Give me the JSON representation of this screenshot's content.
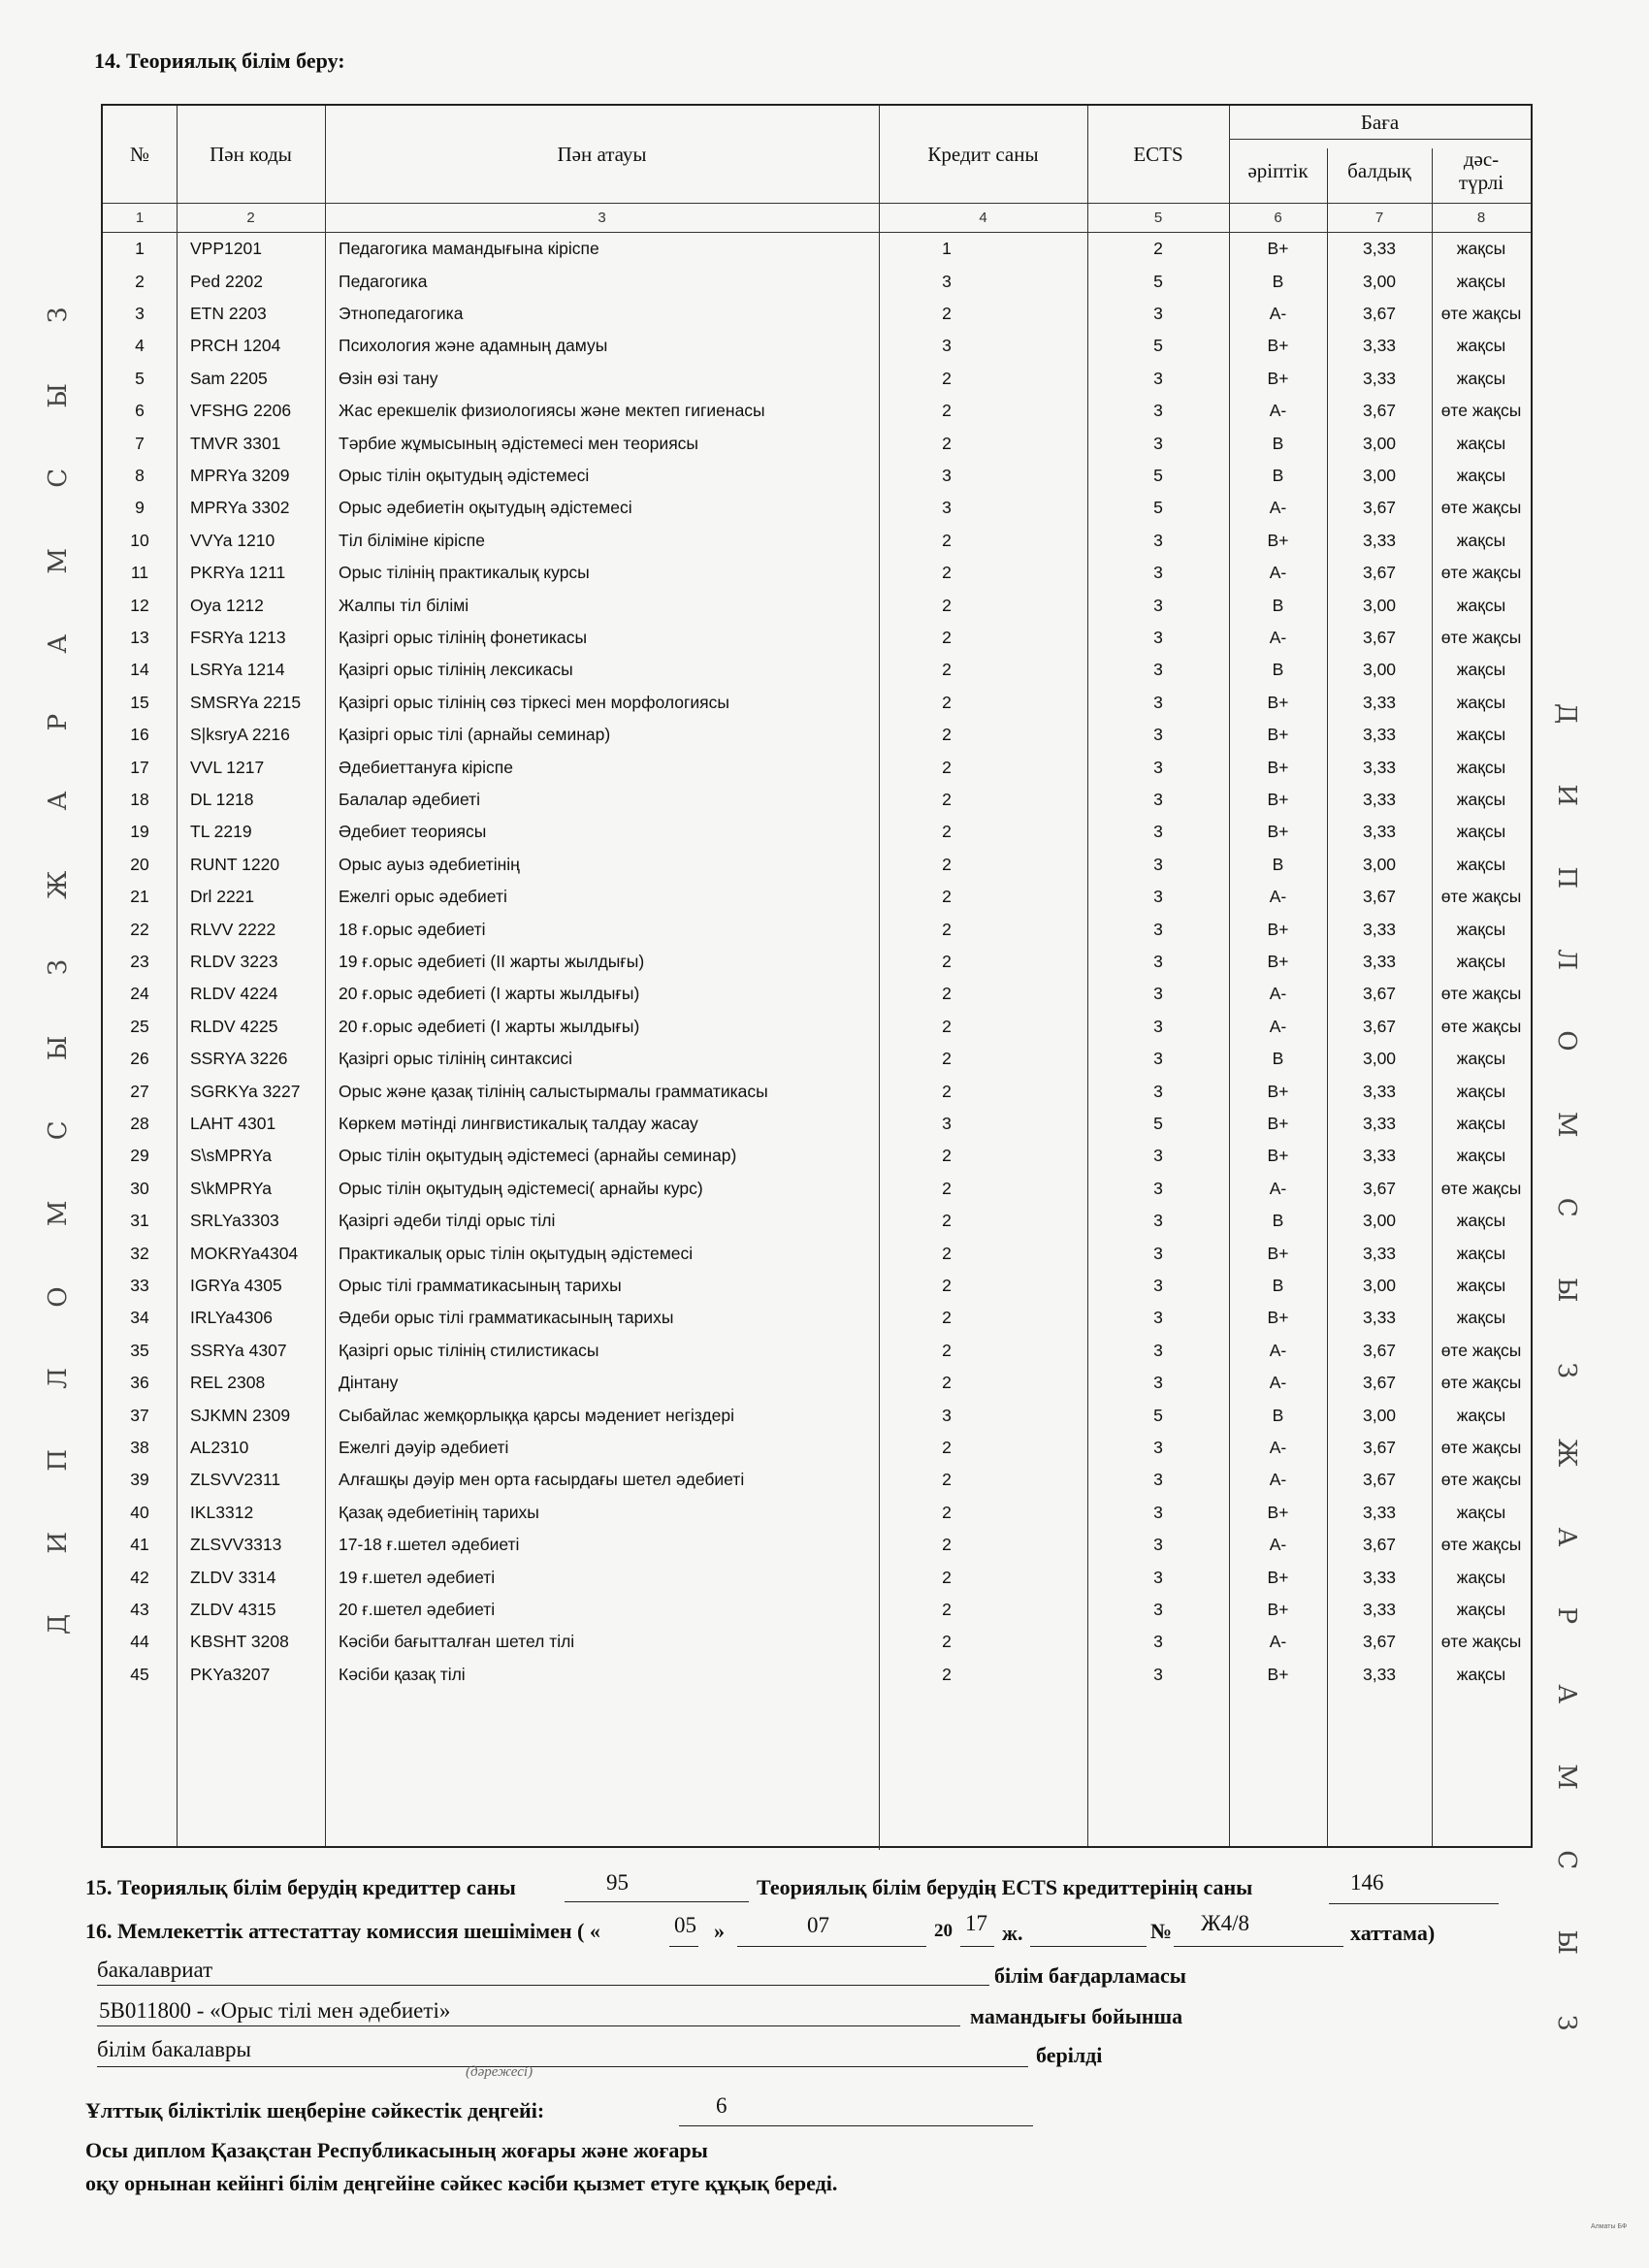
{
  "section14_title": "14. Теориялық білім беру:",
  "watermark": "Д И П Л О М С Ы З   Ж А Р А М С Ы З",
  "table": {
    "headers": {
      "no": "№",
      "code": "Пән коды",
      "name": "Пән атауы",
      "credits": "Кредит саны",
      "ects": "ECTS",
      "grade": "Баға",
      "letter": "әріптік",
      "digital": "балдық",
      "traditional": "дәс-түрлі"
    },
    "column_numbers": [
      "1",
      "2",
      "3",
      "4",
      "5",
      "6",
      "7",
      "8"
    ],
    "rows": [
      [
        "1",
        "VPP1201",
        "Педагогика мамандығына кіріспе",
        "1",
        "2",
        "B+",
        "3,33",
        "жақсы"
      ],
      [
        "2",
        "Ped 2202",
        "Педагогика",
        "3",
        "5",
        "B",
        "3,00",
        "жақсы"
      ],
      [
        "3",
        "ETN 2203",
        "Этнопедагогика",
        "2",
        "3",
        "A-",
        "3,67",
        "өте жақсы"
      ],
      [
        "4",
        "PRCH 1204",
        "Психология және адамның дамуы",
        "3",
        "5",
        "B+",
        "3,33",
        "жақсы"
      ],
      [
        "5",
        "Sam 2205",
        "Өзін өзі тану",
        "2",
        "3",
        "B+",
        "3,33",
        "жақсы"
      ],
      [
        "6",
        "VFSHG 2206",
        "Жас ерекшелік физиологиясы және мектеп гигиенасы",
        "2",
        "3",
        "A-",
        "3,67",
        "өте жақсы"
      ],
      [
        "7",
        "TMVR 3301",
        "Тәрбие жұмысының әдістемесі мен теориясы",
        "2",
        "3",
        "B",
        "3,00",
        "жақсы"
      ],
      [
        "8",
        "MPRYa 3209",
        "Орыс тілін оқытудың әдістемесі",
        "3",
        "5",
        "B",
        "3,00",
        "жақсы"
      ],
      [
        "9",
        "MPRYa 3302",
        "Орыс әдебиетін оқытудың әдістемесі",
        "3",
        "5",
        "A-",
        "3,67",
        "өте жақсы"
      ],
      [
        "10",
        "VVYa 1210",
        "Тіл біліміне кіріспе",
        "2",
        "3",
        "B+",
        "3,33",
        "жақсы"
      ],
      [
        "11",
        "PKRYa 1211",
        "Орыс тілінің практикалық курсы",
        "2",
        "3",
        "A-",
        "3,67",
        "өте жақсы"
      ],
      [
        "12",
        "Oya 1212",
        "Жалпы тіл білімі",
        "2",
        "3",
        "B",
        "3,00",
        "жақсы"
      ],
      [
        "13",
        "FSRYa 1213",
        "Қазіргі орыс тілінің фонетикасы",
        "2",
        "3",
        "A-",
        "3,67",
        "өте жақсы"
      ],
      [
        "14",
        "LSRYa 1214",
        "Қазіргі орыс тілінің лексикасы",
        "2",
        "3",
        "B",
        "3,00",
        "жақсы"
      ],
      [
        "15",
        "SMSRYa 2215",
        "Қазіргі орыс тілінің сөз тіркесі мен морфологиясы",
        "2",
        "3",
        "B+",
        "3,33",
        "жақсы"
      ],
      [
        "16",
        "S|ksryA 2216",
        "Қазіргі орыс тілі (арнайы семинар)",
        "2",
        "3",
        "B+",
        "3,33",
        "жақсы"
      ],
      [
        "17",
        "VVL 1217",
        "Әдебиеттануға кіріспе",
        "2",
        "3",
        "B+",
        "3,33",
        "жақсы"
      ],
      [
        "18",
        "DL 1218",
        "Балалар әдебиеті",
        "2",
        "3",
        "B+",
        "3,33",
        "жақсы"
      ],
      [
        "19",
        "TL 2219",
        "Әдебиет теориясы",
        "2",
        "3",
        "B+",
        "3,33",
        "жақсы"
      ],
      [
        "20",
        "RUNT 1220",
        "Орыс ауыз әдебиетінің",
        "2",
        "3",
        "B",
        "3,00",
        "жақсы"
      ],
      [
        "21",
        "Drl 2221",
        "Ежелгі орыс әдебиеті",
        "2",
        "3",
        "A-",
        "3,67",
        "өте жақсы"
      ],
      [
        "22",
        "RLVV 2222",
        "18 ғ.орыс әдебиеті",
        "2",
        "3",
        "B+",
        "3,33",
        "жақсы"
      ],
      [
        "23",
        "RLDV 3223",
        "19 ғ.орыс әдебиеті (II жарты жылдығы)",
        "2",
        "3",
        "B+",
        "3,33",
        "жақсы"
      ],
      [
        "24",
        "RLDV 4224",
        "20 ғ.орыс әдебиеті (I жарты жылдығы)",
        "2",
        "3",
        "A-",
        "3,67",
        "өте жақсы"
      ],
      [
        "25",
        "RLDV 4225",
        "20 ғ.орыс әдебиеті (I жарты жылдығы)",
        "2",
        "3",
        "A-",
        "3,67",
        "өте жақсы"
      ],
      [
        "26",
        "SSRYA 3226",
        "Қазіргі орыс тілінің синтаксисі",
        "2",
        "3",
        "B",
        "3,00",
        "жақсы"
      ],
      [
        "27",
        "SGRKYa 3227",
        "Орыс және қазақ тілінің салыстырмалы грамматикасы",
        "2",
        "3",
        "B+",
        "3,33",
        "жақсы"
      ],
      [
        "28",
        "LAHT 4301",
        "Көркем мәтінді лингвистикалық талдау жасау",
        "3",
        "5",
        "B+",
        "3,33",
        "жақсы"
      ],
      [
        "29",
        "S\\sMPRYa",
        "Орыс тілін оқытудың әдістемесі (арнайы семинар)",
        "2",
        "3",
        "B+",
        "3,33",
        "жақсы"
      ],
      [
        "30",
        "S\\kMPRYa",
        "Орыс тілін оқытудың әдістемесі( арнайы курс)",
        "2",
        "3",
        "A-",
        "3,67",
        "өте жақсы"
      ],
      [
        "31",
        "SRLYa3303",
        "Қазіргі әдеби тілді орыс тілі",
        "2",
        "3",
        "B",
        "3,00",
        "жақсы"
      ],
      [
        "32",
        "MOKRYa4304",
        "Практикалық орыс тілін оқытудың әдістемесі",
        "2",
        "3",
        "B+",
        "3,33",
        "жақсы"
      ],
      [
        "33",
        "IGRYa 4305",
        "Орыс тілі грамматикасының тарихы",
        "2",
        "3",
        "B",
        "3,00",
        "жақсы"
      ],
      [
        "34",
        "IRLYa4306",
        "Әдеби орыс тілі грамматикасының тарихы",
        "2",
        "3",
        "B+",
        "3,33",
        "жақсы"
      ],
      [
        "35",
        "SSRYa 4307",
        "Қазіргі орыс тілінің стилистикасы",
        "2",
        "3",
        "A-",
        "3,67",
        "өте жақсы"
      ],
      [
        "36",
        "REL 2308",
        "Дінтану",
        "2",
        "3",
        "A-",
        "3,67",
        "өте жақсы"
      ],
      [
        "37",
        "SJKMN 2309",
        "Сыбайлас жемқорлыққа қарсы мәдениет негіздері",
        "3",
        "5",
        "B",
        "3,00",
        "жақсы"
      ],
      [
        "38",
        "AL2310",
        "Ежелгі дәуір әдебиеті",
        "2",
        "3",
        "A-",
        "3,67",
        "өте жақсы"
      ],
      [
        "39",
        "ZLSVV2311",
        "Алғашқы дәуір мен орта ғасырдағы шетел әдебиеті",
        "2",
        "3",
        "A-",
        "3,67",
        "өте жақсы"
      ],
      [
        "40",
        "IKL3312",
        "Қазақ әдебиетінің тарихы",
        "2",
        "3",
        "B+",
        "3,33",
        "жақсы"
      ],
      [
        "41",
        "ZLSVV3313",
        "17-18 ғ.шетел әдебиеті",
        "2",
        "3",
        "A-",
        "3,67",
        "өте жақсы"
      ],
      [
        "42",
        "ZLDV 3314",
        "19 ғ.шетел әдебиеті",
        "2",
        "3",
        "B+",
        "3,33",
        "жақсы"
      ],
      [
        "43",
        "ZLDV 4315",
        "20 ғ.шетел әдебиеті",
        "2",
        "3",
        "B+",
        "3,33",
        "жақсы"
      ],
      [
        "44",
        "KBSHT 3208",
        "Кәсіби бағытталған шетел тілі",
        "2",
        "3",
        "A-",
        "3,67",
        "өте жақсы"
      ],
      [
        "45",
        "PKYa3207",
        "Кәсіби қазақ тілі",
        "2",
        "3",
        "B+",
        "3,33",
        "жақсы"
      ]
    ]
  },
  "section15": {
    "label_credits": "15. Теориялық білім берудің кредиттер саны",
    "credits_value": "95",
    "label_ects": "Теориялық білім берудің ECTS кредиттерінің саны",
    "ects_value": "146"
  },
  "section16": {
    "label": "16. Мемлекеттік аттестаттау комиссия шешімімен ( «",
    "day": "05",
    "day_close": "»",
    "month": "07",
    "year_prefix": "20",
    "year_suffix": "17",
    "year_label": "ж.",
    "number_label": "№",
    "protocol_number": "Ж4/8",
    "protocol_label": "хаттама)"
  },
  "program": {
    "value": "бакалавриат",
    "label": "білім бағдарламасы"
  },
  "specialty": {
    "value": "5B011800 - «Орыс тілі мен әдебиеті»",
    "label": "мамандығы бойынша"
  },
  "degree": {
    "value": "білім бакалавры",
    "label": "берілді",
    "hint": "(дәрежесі)"
  },
  "nqf": {
    "label": "Ұлттық біліктілік шеңберіне сәйкестік деңгейі:",
    "value": "6"
  },
  "rights_line1": "Осы диплом Қазақстан Республикасының жоғары және жоғары",
  "rights_line2": "оқу орнынан кейінгі білім деңгейіне сәйкес кәсіби қызмет етуге құқық береді.",
  "printer_mark": "Алматы БФ"
}
